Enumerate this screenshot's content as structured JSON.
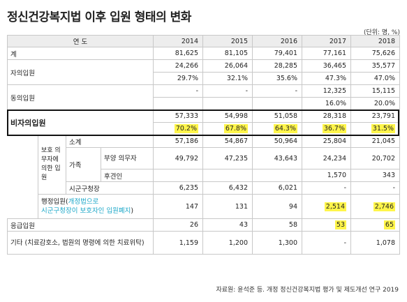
{
  "title": "정신건강복지법 이후 입원 형태의 변화",
  "unit": "(단위: 명, %)",
  "source": "자료원: 윤석준 등. 개정 정신건강복지법 평가 및 제도개선 연구 2019",
  "header": {
    "label": "연 도",
    "years": [
      "2014",
      "2015",
      "2016",
      "2017",
      "2018"
    ]
  },
  "rows": {
    "total": {
      "label": "계",
      "values": [
        "81,625",
        "81,105",
        "79,401",
        "77,161",
        "75,626"
      ]
    },
    "voluntary": {
      "label": "자의입원",
      "values": [
        "24,266",
        "26,064",
        "28,285",
        "36,465",
        "35,577"
      ],
      "pct": [
        "29.7%",
        "32.1%",
        "35.6%",
        "47.3%",
        "47.0%"
      ]
    },
    "consent": {
      "label": "동의입원",
      "values": [
        "-",
        "-",
        "-",
        "12,325",
        "15,115"
      ],
      "pct": [
        "",
        "",
        "",
        "16.0%",
        "20.0%"
      ]
    },
    "involuntary": {
      "label": "비자의입원",
      "values": [
        "57,333",
        "54,998",
        "51,058",
        "28,318",
        "23,791"
      ],
      "pct": [
        "70.2%",
        "67.8%",
        "64.3%",
        "36.7%",
        "31.5%"
      ]
    },
    "guardian_group": {
      "label": "보호 의무자에 의한 입원"
    },
    "subtotal": {
      "label": "소계",
      "values": [
        "57,186",
        "54,867",
        "50,964",
        "25,804",
        "21,045"
      ]
    },
    "family": {
      "label": "가족"
    },
    "support": {
      "label": "부양 의무자",
      "values": [
        "49,792",
        "47,235",
        "43,643",
        "24,234",
        "20,702"
      ]
    },
    "guardian": {
      "label": "후견인",
      "values": [
        "",
        "",
        "",
        "1,570",
        "343"
      ]
    },
    "mayor": {
      "label": "시군구청장",
      "values": [
        "6,235",
        "6,432",
        "6,021",
        "-",
        "-"
      ]
    },
    "admin": {
      "label_main": "행정입원(",
      "label_note1": "개정법으로",
      "label_note2": "시군구청장이 보호자인 입원폐지",
      "label_close": ")",
      "values": [
        "147",
        "131",
        "94",
        "2,514",
        "2,746"
      ]
    },
    "emergency": {
      "label": "응급입원",
      "values": [
        "26",
        "43",
        "58",
        "53",
        "65"
      ]
    },
    "other": {
      "label": "기타 (치료감호소, 법원의 명령에 의한 치료위탁)",
      "values": [
        "1,159",
        "1,200",
        "1,300",
        "-",
        "1,078"
      ]
    }
  },
  "colors": {
    "highlight": "#fff54a",
    "cyan": "#1aa7c8",
    "header_bg": "#ededed"
  }
}
